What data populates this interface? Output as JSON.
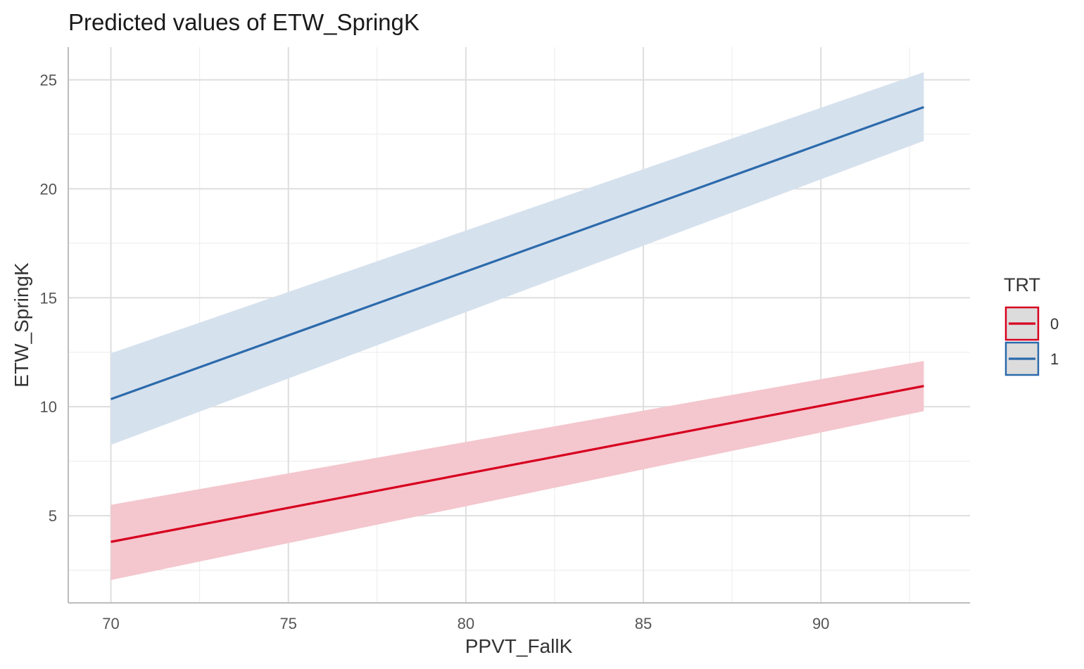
{
  "chart_data": {
    "type": "line",
    "title": "Predicted values of ETW_SpringK",
    "xlabel": "PPVT_FallK",
    "ylabel": "ETW_SpringK",
    "xlim": [
      68.8,
      94.2
    ],
    "ylim": [
      1.0,
      26.5
    ],
    "x_ticks": [
      70,
      75,
      80,
      85,
      90
    ],
    "y_ticks": [
      5,
      10,
      15,
      20,
      25
    ],
    "grid": true,
    "legend": {
      "title": "TRT",
      "position": "right"
    },
    "series": [
      {
        "name": "0",
        "color": "#d7001f",
        "band_color": "#f4c6cd",
        "x": [
          70,
          92.9
        ],
        "y": [
          3.8,
          10.95
        ],
        "ci_low": [
          2.05,
          9.8
        ],
        "ci_high": [
          5.5,
          12.1
        ]
      },
      {
        "name": "1",
        "color": "#2c6aab",
        "band_color": "#d6e1ee",
        "x": [
          70,
          92.9
        ],
        "y": [
          10.35,
          23.75
        ],
        "ci_low": [
          8.25,
          22.2
        ],
        "ci_high": [
          12.45,
          25.35
        ]
      }
    ]
  }
}
